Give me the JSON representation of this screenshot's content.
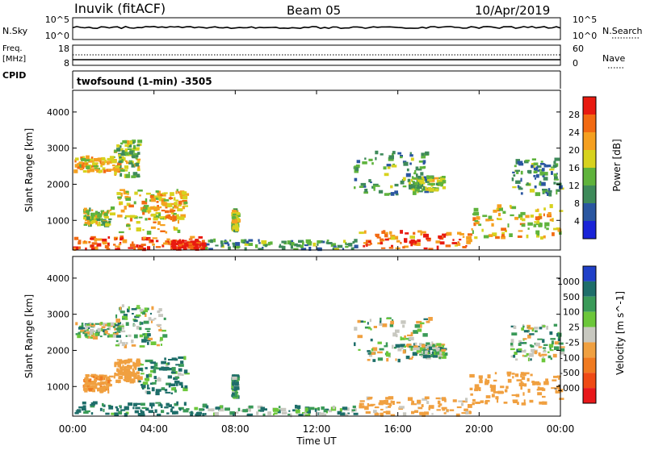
{
  "header": {
    "station": "Inuvik (fitACF)",
    "beam": "Beam 05",
    "date": "10/Apr/2019"
  },
  "sky_panel": {
    "left_label": "N.Sky",
    "left_ticks": [
      "10^5",
      "10^0"
    ],
    "right_label": "N.Search",
    "right_ticks": [
      "10^5",
      "10^0"
    ]
  },
  "freq_panel": {
    "left_label_1": "Freq.",
    "left_label_2": "[MHz]",
    "left_ticks": [
      "18",
      "8"
    ],
    "right_label": "Nave",
    "right_ticks": [
      "60",
      "0"
    ]
  },
  "cpid_panel": {
    "label": "CPID",
    "text": "twofsound (1-min) -3505"
  },
  "axes": {
    "ylabel": "Slant Range [km]",
    "xlabel": "Time UT",
    "y_ticks": [
      "1000",
      "2000",
      "3000",
      "4000"
    ],
    "x_ticks": [
      "00:00",
      "04:00",
      "08:00",
      "12:00",
      "16:00",
      "20:00",
      "00:00"
    ]
  },
  "power_colorbar": {
    "label": "Power [dB]",
    "ticks": [
      "4",
      "8",
      "12",
      "16",
      "20",
      "24",
      "28"
    ],
    "colors": [
      "#1a24d8",
      "#2a56a0",
      "#3e8a5a",
      "#5fb33c",
      "#d7d21e",
      "#f5a020",
      "#f26a12",
      "#e81a10"
    ]
  },
  "velocity_colorbar": {
    "label": "Velocity [m s^-1]",
    "ticks": [
      "1000",
      "500",
      "100",
      "25",
      "-25",
      "-100",
      "-500",
      "-1000"
    ],
    "colors": [
      "#2040c8",
      "#1e6e6a",
      "#3a9a58",
      "#6cc73a",
      "#c8c8c0",
      "#f0a040",
      "#f07a20",
      "#ef4a14",
      "#e8181a"
    ]
  },
  "chart_data": [
    {
      "type": "heatmap",
      "title": "Power",
      "xlabel": "Time UT",
      "ylabel": "Slant Range [km]",
      "xlim": [
        0,
        24
      ],
      "ylim": [
        180,
        4600
      ],
      "colorbar_range": [
        0,
        30
      ],
      "regions": [
        {
          "t0": 0.0,
          "t1": 2.3,
          "r0": 2350,
          "r1": 2750,
          "value": 20
        },
        {
          "t0": 2.0,
          "t1": 3.2,
          "r0": 2200,
          "r1": 3200,
          "value": 14
        },
        {
          "t0": 0.5,
          "t1": 1.8,
          "r0": 850,
          "r1": 1300,
          "value": 16
        },
        {
          "t0": 1.8,
          "t1": 5.2,
          "r0": 650,
          "r1": 1850,
          "value": 18
        },
        {
          "t0": 3.5,
          "t1": 5.5,
          "r0": 1000,
          "r1": 1800,
          "value": 20
        },
        {
          "t0": 0.0,
          "t1": 6.5,
          "r0": 200,
          "r1": 550,
          "value": 25
        },
        {
          "t0": 4.8,
          "t1": 6.5,
          "r0": 200,
          "r1": 450,
          "value": 30
        },
        {
          "t0": 7.8,
          "t1": 8.0,
          "r0": 700,
          "r1": 1300,
          "value": 16
        },
        {
          "t0": 13.8,
          "t1": 17.5,
          "r0": 1700,
          "r1": 2900,
          "value": 10
        },
        {
          "t0": 16.5,
          "t1": 18.2,
          "r0": 1800,
          "r1": 2200,
          "value": 14
        },
        {
          "t0": 14.0,
          "t1": 19.5,
          "r0": 200,
          "r1": 700,
          "value": 24
        },
        {
          "t0": 19.5,
          "t1": 24.0,
          "r0": 500,
          "r1": 1400,
          "value": 18
        },
        {
          "t0": 21.5,
          "t1": 24.0,
          "r0": 1700,
          "r1": 2700,
          "value": 10
        },
        {
          "t0": 6.5,
          "t1": 14.0,
          "r0": 200,
          "r1": 450,
          "value": 10
        }
      ]
    },
    {
      "type": "heatmap",
      "title": "Velocity",
      "xlabel": "Time UT",
      "ylabel": "Slant Range [km]",
      "xlim": [
        0,
        24
      ],
      "ylim": [
        180,
        4600
      ],
      "colorbar_range": [
        -1000,
        1000
      ],
      "regions": [
        {
          "t0": 0.0,
          "t1": 2.3,
          "r0": 2350,
          "r1": 2750,
          "value": 0
        },
        {
          "t0": 2.0,
          "t1": 4.5,
          "r0": 2100,
          "r1": 3250,
          "value": 0
        },
        {
          "t0": 0.5,
          "t1": 1.8,
          "r0": 850,
          "r1": 1300,
          "value": -400
        },
        {
          "t0": 2.0,
          "t1": 3.2,
          "r0": 1100,
          "r1": 1750,
          "value": -300
        },
        {
          "t0": 3.2,
          "t1": 5.5,
          "r0": 800,
          "r1": 1800,
          "value": 100
        },
        {
          "t0": 0.0,
          "t1": 6.5,
          "r0": 200,
          "r1": 550,
          "value": 150
        },
        {
          "t0": 7.8,
          "t1": 8.0,
          "r0": 700,
          "r1": 1300,
          "value": 100
        },
        {
          "t0": 13.8,
          "t1": 17.5,
          "r0": 1700,
          "r1": 2900,
          "value": 0
        },
        {
          "t0": 16.5,
          "t1": 18.2,
          "r0": 1800,
          "r1": 2200,
          "value": 0
        },
        {
          "t0": 14.0,
          "t1": 19.5,
          "r0": 200,
          "r1": 700,
          "value": -200
        },
        {
          "t0": 19.5,
          "t1": 24.0,
          "r0": 500,
          "r1": 1400,
          "value": -300
        },
        {
          "t0": 21.5,
          "t1": 24.0,
          "r0": 1700,
          "r1": 2700,
          "value": 0
        },
        {
          "t0": 6.5,
          "t1": 14.0,
          "r0": 200,
          "r1": 450,
          "value": 50
        }
      ]
    }
  ]
}
